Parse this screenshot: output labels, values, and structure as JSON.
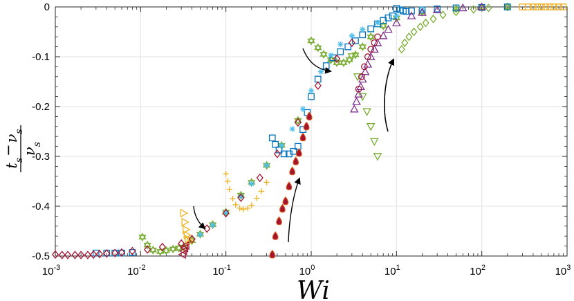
{
  "chart_data": {
    "type": "scatter",
    "title": "",
    "xlabel": "Wi",
    "ylabel": {
      "num_a": "t",
      "num_a_sub": "s",
      "num_op": "−",
      "num_b": "ν",
      "num_b_sub": "s",
      "den": "ν",
      "den_sub": "s"
    },
    "xscale": "log",
    "xlim": [
      0.001,
      1000
    ],
    "ylim": [
      -0.5,
      0
    ],
    "grid": true,
    "legend": "none",
    "x_ticks": [
      {
        "base": "10",
        "exp": "-3"
      },
      {
        "base": "10",
        "exp": "-2"
      },
      {
        "base": "10",
        "exp": "-1"
      },
      {
        "base": "10",
        "exp": "0"
      },
      {
        "base": "10",
        "exp": "1"
      },
      {
        "base": "10",
        "exp": "2"
      },
      {
        "base": "10",
        "exp": "3"
      }
    ],
    "y_ticks": [
      "-0.5",
      "-0.4",
      "-0.3",
      "-0.2",
      "-0.1",
      "0"
    ],
    "series": [
      {
        "color": "#77AC30",
        "marker": "hexagram",
        "x": [
          0.0105,
          0.012,
          0.014,
          0.017,
          0.02,
          0.024,
          0.028,
          0.032,
          0.04,
          0.05,
          0.07,
          0.1,
          0.15,
          0.2,
          0.3,
          0.45,
          0.7,
          1.0,
          1.2,
          1.4,
          1.7,
          2.0,
          2.4,
          2.8,
          3.3,
          4,
          5,
          7,
          10,
          20,
          50,
          100,
          200
        ],
        "y": [
          -0.462,
          -0.478,
          -0.488,
          -0.491,
          -0.489,
          -0.486,
          -0.484,
          -0.482,
          -0.469,
          -0.456,
          -0.437,
          -0.412,
          -0.378,
          -0.352,
          -0.318,
          -0.278,
          -0.228,
          -0.068,
          -0.082,
          -0.095,
          -0.106,
          -0.112,
          -0.112,
          -0.106,
          -0.096,
          -0.08,
          -0.06,
          -0.038,
          -0.022,
          -0.01,
          -0.004,
          -0.001,
          0
        ]
      },
      {
        "color": "#77AC30",
        "marker": "triangle-down",
        "x": [
          3.0,
          3.5,
          4.0,
          4.5,
          5.0,
          5.5,
          6.0
        ],
        "y": [
          -0.1,
          -0.14,
          -0.18,
          -0.21,
          -0.24,
          -0.27,
          -0.3
        ]
      },
      {
        "color": "#77AC30",
        "marker": "diamond",
        "x": [
          11.5,
          12.5,
          14,
          16,
          19,
          22,
          27,
          35,
          50,
          80,
          120,
          200
        ],
        "y": [
          -0.085,
          -0.072,
          -0.06,
          -0.05,
          -0.04,
          -0.032,
          -0.024,
          -0.016,
          -0.01,
          -0.005,
          -0.002,
          0
        ]
      },
      {
        "color": "#0072BD",
        "marker": "square",
        "x": [
          0.003,
          0.004,
          0.005,
          0.006,
          0.008,
          0.35,
          0.38,
          0.42,
          0.48,
          0.55,
          0.62,
          0.7,
          0.8,
          0.9,
          1.0,
          1.2,
          1.5,
          1.8,
          2.2,
          2.7,
          3.3,
          4,
          5,
          6,
          7,
          8,
          9,
          10,
          11,
          12,
          13,
          15,
          20,
          30,
          50,
          100,
          200
        ],
        "y": [
          -0.494,
          -0.494,
          -0.494,
          -0.494,
          -0.493,
          -0.263,
          -0.276,
          -0.287,
          -0.295,
          -0.295,
          -0.29,
          -0.28,
          -0.246,
          -0.212,
          -0.18,
          -0.145,
          -0.118,
          -0.102,
          -0.09,
          -0.08,
          -0.068,
          -0.056,
          -0.044,
          -0.034,
          -0.027,
          -0.022,
          -0.018,
          -0.003,
          -0.006,
          -0.008,
          -0.009,
          -0.008,
          -0.006,
          -0.004,
          -0.002,
          -0.001,
          0
        ]
      },
      {
        "color": "#4DBEEE",
        "marker": "asterisk",
        "x": [
          0.05,
          0.07,
          0.1,
          0.15,
          0.2,
          0.3,
          0.45,
          0.6,
          0.8,
          1.0,
          1.3,
          1.7,
          2.2,
          3,
          4,
          6,
          10,
          20
        ],
        "y": [
          -0.457,
          -0.438,
          -0.413,
          -0.38,
          -0.355,
          -0.318,
          -0.278,
          -0.245,
          -0.205,
          -0.168,
          -0.13,
          -0.097,
          -0.075,
          -0.058,
          -0.045,
          -0.032,
          -0.018,
          -0.006
        ]
      },
      {
        "color": "#EDB120",
        "marker": "plus",
        "x": [
          0.1,
          0.105,
          0.11,
          0.12,
          0.13,
          0.145,
          0.16,
          0.18,
          0.2,
          0.23,
          0.26,
          0.3
        ],
        "y": [
          -0.335,
          -0.35,
          -0.366,
          -0.385,
          -0.397,
          -0.404,
          -0.406,
          -0.404,
          -0.398,
          -0.384,
          -0.37,
          -0.352
        ]
      },
      {
        "color": "#EDB120",
        "marker": "triangle-right",
        "x": [
          0.032,
          0.033,
          0.034,
          0.035,
          0.036,
          0.038
        ],
        "y": [
          -0.414,
          -0.432,
          -0.447,
          -0.458,
          -0.466,
          -0.471
        ]
      },
      {
        "color": "#EDB120",
        "marker": "square",
        "x": [
          300,
          350,
          400,
          450,
          500,
          560,
          630,
          700,
          800,
          900
        ],
        "y": [
          0,
          0,
          0,
          0,
          0,
          0,
          0,
          0,
          0,
          0
        ]
      },
      {
        "color": "#7E2F8E",
        "marker": "triangle-up",
        "x": [
          3.2,
          3.4,
          3.6,
          3.8,
          4.0,
          4.3,
          4.6,
          5,
          5.5,
          6,
          7,
          8,
          10,
          15,
          20,
          30,
          60,
          100
        ],
        "y": [
          -0.205,
          -0.19,
          -0.175,
          -0.16,
          -0.145,
          -0.13,
          -0.115,
          -0.1,
          -0.085,
          -0.072,
          -0.058,
          -0.045,
          -0.032,
          -0.018,
          -0.011,
          -0.006,
          -0.002,
          0
        ]
      },
      {
        "color": "#A2142F",
        "marker": "diamond",
        "x": [
          0.001,
          0.0012,
          0.0014,
          0.0017,
          0.002,
          0.0024,
          0.0028,
          0.0033,
          0.004,
          0.005,
          0.006,
          0.008,
          0.012,
          0.018,
          0.03,
          0.04,
          0.06,
          0.1,
          0.15,
          0.25,
          0.4,
          0.7,
          1.2,
          2,
          3
        ],
        "y": [
          -0.497,
          -0.498,
          -0.498,
          -0.498,
          -0.498,
          -0.498,
          -0.497,
          -0.496,
          -0.495,
          -0.494,
          -0.493,
          -0.49,
          -0.487,
          -0.482,
          -0.475,
          -0.466,
          -0.445,
          -0.414,
          -0.383,
          -0.343,
          -0.295,
          -0.232,
          -0.158,
          -0.104,
          -0.072
        ]
      },
      {
        "color": "#A2142F",
        "marker": "triangle-left",
        "x": [
          0.031,
          0.032,
          0.033,
          0.034
        ],
        "y": [
          -0.497,
          -0.49,
          -0.484,
          -0.479
        ]
      },
      {
        "color": "#A2142F",
        "marker": "circle",
        "x": [
          3.6,
          3.9,
          4.2,
          4.6,
          5,
          5.5,
          6
        ],
        "y": [
          -0.165,
          -0.14,
          -0.12,
          -0.1,
          -0.085,
          -0.072,
          -0.06
        ]
      },
      {
        "color": "#D95319",
        "marker": "drop",
        "x": [
          0.35,
          0.38,
          0.42,
          0.46,
          0.5,
          0.55,
          0.6,
          0.66,
          0.72,
          0.8,
          0.88,
          0.95
        ],
        "y": [
          -0.497,
          -0.46,
          -0.43,
          -0.405,
          -0.39,
          -0.36,
          -0.33,
          -0.31,
          -0.293,
          -0.262,
          -0.24,
          -0.22
        ]
      }
    ],
    "annotations": [
      {
        "kind": "arrow",
        "label": ""
      },
      {
        "kind": "arrow",
        "label": ""
      },
      {
        "kind": "arrow",
        "label": ""
      },
      {
        "kind": "arrow",
        "label": ""
      },
      {
        "kind": "arrow",
        "label": ""
      }
    ]
  }
}
